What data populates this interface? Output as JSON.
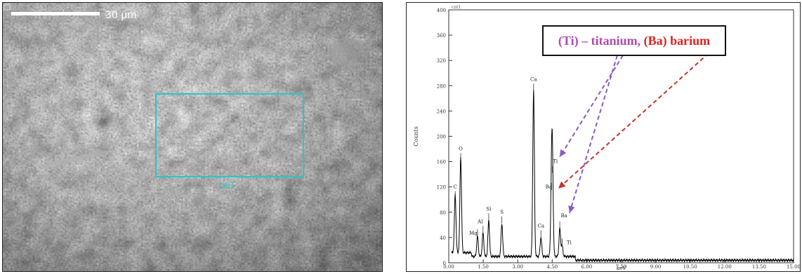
{
  "sem_image": {
    "scale_label": "30 µm",
    "roi_label": "an1"
  },
  "callout": {
    "part1": "(Ti) – titanium,",
    "part2": "(Ba) barium",
    "color_ti": "#b04ab0",
    "color_ba": "#e02020"
  },
  "chart_data": {
    "type": "line",
    "title": "",
    "top_label": "cnt1",
    "xlabel": "keV",
    "ylabel": "Counts",
    "xlim": [
      0,
      15
    ],
    "ylim": [
      0,
      400
    ],
    "x_ticks": [
      "0.00",
      "1.50",
      "3.00",
      "4.50",
      "6.00",
      "7.50",
      "9.00",
      "10.50",
      "12.00",
      "13.50",
      "15.00"
    ],
    "y_ticks": [
      "0",
      "40",
      "80",
      "120",
      "160",
      "200",
      "240",
      "280",
      "320",
      "360",
      "400"
    ],
    "peaks": [
      {
        "label": "C",
        "x": 0.28,
        "y": 100
      },
      {
        "label": "O",
        "x": 0.52,
        "y": 160
      },
      {
        "label": "Mg",
        "x": 1.25,
        "y": 40
      },
      {
        "label": "Al",
        "x": 1.49,
        "y": 45
      },
      {
        "label": "Si",
        "x": 1.74,
        "y": 65
      },
      {
        "label": "S",
        "x": 2.31,
        "y": 60
      },
      {
        "label": "Ca",
        "x": 3.69,
        "y": 270
      },
      {
        "label": "Ca",
        "x": 4.01,
        "y": 38
      },
      {
        "label": "Ti",
        "x": 4.51,
        "y": 140
      },
      {
        "label": "Ba",
        "x": 4.47,
        "y": 113
      },
      {
        "label": "Ba",
        "x": 4.83,
        "y": 52
      },
      {
        "label": "Ti",
        "x": 4.93,
        "y": 25
      }
    ],
    "grid": false,
    "colors": {
      "line": "#000000",
      "ti_arrow": "#8a5bbf",
      "ba_arrow": "#c0392b"
    }
  }
}
